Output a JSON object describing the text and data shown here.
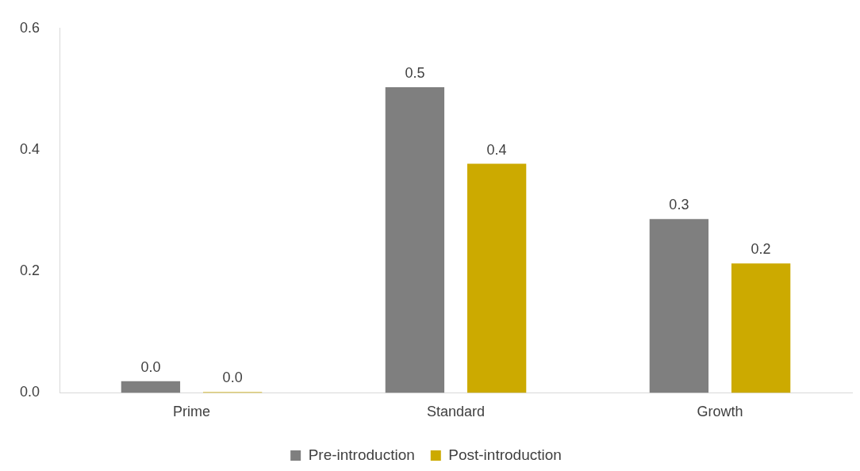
{
  "chart_data": {
    "type": "bar",
    "categories": [
      "Prime",
      "Standard",
      "Growth"
    ],
    "series": [
      {
        "name": "Pre-introduction",
        "color": "#7f7f7f",
        "values": [
          0.019,
          0.503,
          0.286
        ],
        "value_labels": [
          "0.0",
          "0.5",
          "0.3"
        ]
      },
      {
        "name": "Post-introduction",
        "color": "#ccaa00",
        "values": [
          0,
          0.377,
          0.213
        ],
        "value_labels": [
          "0.0",
          "0.4",
          "0.2"
        ]
      }
    ],
    "ylim": [
      0,
      0.6
    ],
    "yticks": [
      {
        "value": 0,
        "label": "0.0"
      },
      {
        "value": 0.2,
        "label": "0.2"
      },
      {
        "value": 0.4,
        "label": "0.4"
      },
      {
        "value": 0.6,
        "label": "0.6"
      }
    ],
    "grid": false,
    "legend": "bottom"
  }
}
